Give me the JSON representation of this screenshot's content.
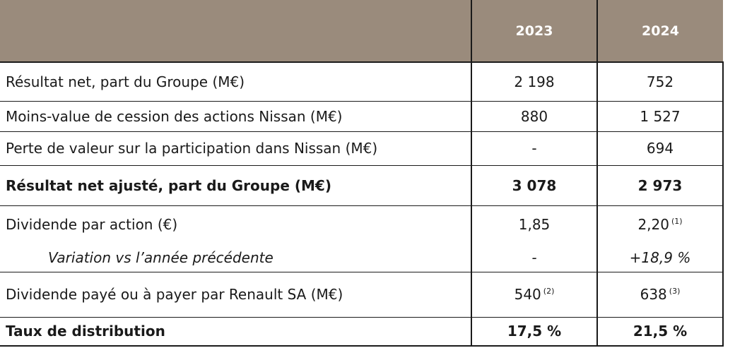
{
  "header": {
    "years": [
      "2023",
      "2024"
    ]
  },
  "rows": [
    {
      "label": "Résultat net, part du Groupe (M€)",
      "v2023": "2 198",
      "v2024": "752"
    },
    {
      "label": "Moins-value de cession des actions Nissan (M€)",
      "v2023": "880",
      "v2024": "1 527"
    },
    {
      "label": "Perte de valeur sur la participation dans Nissan (M€)",
      "v2023": "-",
      "v2024": "694"
    },
    {
      "label": "Résultat net ajusté, part du Groupe (M€)",
      "v2023": "3 078",
      "v2024": "2 973"
    },
    {
      "label": "Dividende par action (€)",
      "v2023": "1,85",
      "v2024": "2,20",
      "n2024": "(1)"
    },
    {
      "label": "Variation vs l’année précédente",
      "v2023": "-",
      "v2024": "+18,9 %"
    },
    {
      "label": "Dividende payé ou à payer par Renault SA (M€)",
      "v2023": "540",
      "n2023": "(2)",
      "v2024": "638",
      "n2024": "(3)"
    },
    {
      "label": "Taux de distribution",
      "v2023": "17,5 %",
      "v2024": "21,5 %"
    }
  ]
}
